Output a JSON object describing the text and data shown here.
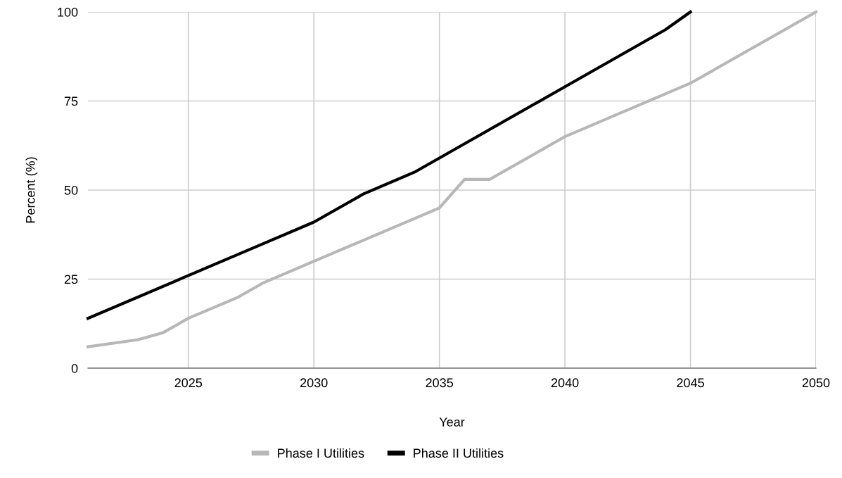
{
  "chart_data": {
    "type": "line",
    "xlabel": "Year",
    "ylabel": "Percent (%)",
    "xlim": [
      2021,
      2050
    ],
    "xticks": [
      2025,
      2030,
      2035,
      2040,
      2045,
      2050
    ],
    "ylim": [
      0,
      100
    ],
    "yticks": [
      0,
      25,
      50,
      75,
      100
    ],
    "grid": true,
    "legend": "bottom",
    "line_style": "solid",
    "series": [
      {
        "name": "Phase I Utilities",
        "color": "#b7b7b7",
        "x": [
          2021,
          2023,
          2024,
          2025,
          2027,
          2028,
          2030,
          2035,
          2036,
          2037,
          2040,
          2045,
          2050
        ],
        "values": [
          6,
          8,
          10,
          14,
          20,
          24,
          30,
          45,
          53,
          53,
          65,
          80,
          100
        ]
      },
      {
        "name": "Phase II Utilities",
        "color": "#000000",
        "x": [
          2021,
          2025,
          2028,
          2030,
          2032,
          2034,
          2035,
          2040,
          2044,
          2045
        ],
        "values": [
          14,
          26,
          35,
          41,
          49,
          55,
          59,
          79,
          95,
          100
        ]
      }
    ]
  }
}
